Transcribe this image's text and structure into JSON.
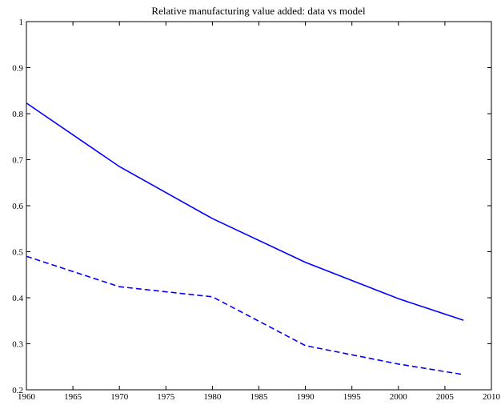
{
  "chart_data": {
    "type": "line",
    "title": "Relative manufacturing value added: data vs model",
    "x": [
      1960,
      1970,
      1980,
      1990,
      2000,
      2007
    ],
    "series": [
      {
        "color": "#0000ff",
        "linestyle": "solid",
        "values": [
          0.823,
          0.685,
          0.572,
          0.477,
          0.398,
          0.351
        ]
      },
      {
        "color": "#0000ff",
        "linestyle": "dashed",
        "values": [
          0.49,
          0.424,
          0.402,
          0.296,
          0.256,
          0.233
        ]
      }
    ],
    "xlim": [
      1960,
      2010
    ],
    "xticks": [
      1960,
      1965,
      1970,
      1975,
      1980,
      1985,
      1990,
      1995,
      2000,
      2005,
      2010
    ],
    "ylim": [
      0.2,
      1
    ],
    "yticks": [
      0.2,
      0.3,
      0.4,
      0.5,
      0.6,
      0.7,
      0.8,
      0.9,
      1
    ],
    "grid": false
  }
}
